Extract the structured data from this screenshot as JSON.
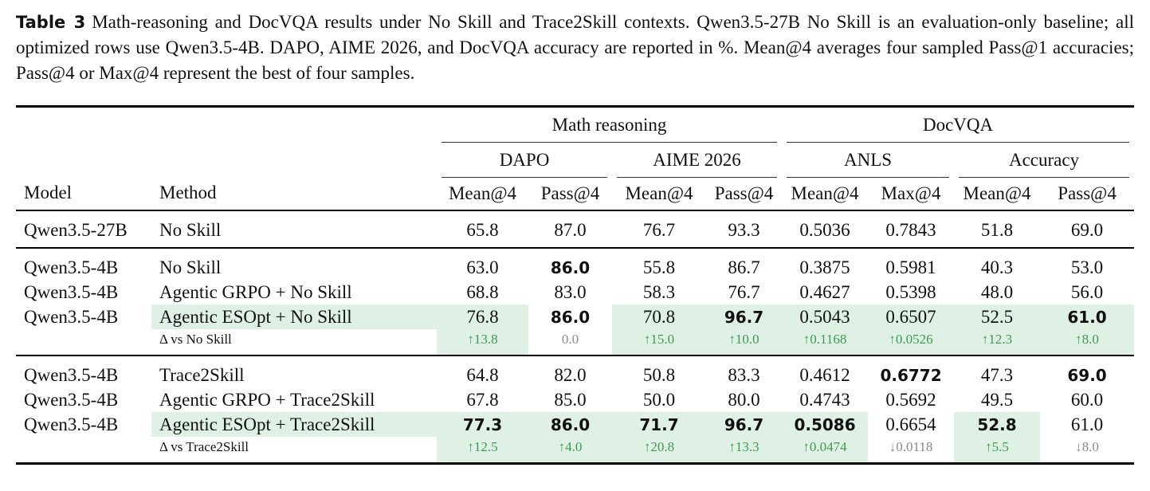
{
  "caption": {
    "label": "Table 3",
    "text": "Math-reasoning and DocVQA results under No Skill and Trace2Skill contexts. Qwen3.5-27B No Skill is an evaluation-only baseline; all optimized rows use Qwen3.5-4B. DAPO, AIME 2026, and DocVQA accuracy are reported in %. Mean@4 averages four sampled Pass@1 accuracies; Pass@4 or Max@4 represent the best of four samples."
  },
  "table": {
    "columns": [
      "Model",
      "Method"
    ],
    "groups": [
      {
        "name": "Math reasoning",
        "subgroups": [
          {
            "name": "DAPO",
            "metrics": [
              "Mean@4",
              "Pass@4"
            ]
          },
          {
            "name": "AIME 2026",
            "metrics": [
              "Mean@4",
              "Pass@4"
            ]
          }
        ]
      },
      {
        "name": "DocVQA",
        "subgroups": [
          {
            "name": "ANLS",
            "metrics": [
              "Mean@4",
              "Max@4"
            ]
          },
          {
            "name": "Accuracy",
            "metrics": [
              "Mean@4",
              "Pass@4"
            ]
          }
        ]
      }
    ],
    "sections": [
      [
        {
          "model": "Qwen3.5-27B",
          "method": "No Skill",
          "values": [
            "65.8",
            "87.0",
            "76.7",
            "93.3",
            "0.5036",
            "0.7843",
            "51.8",
            "69.0"
          ]
        }
      ],
      [
        {
          "model": "Qwen3.5-4B",
          "method": "No Skill",
          "values": [
            "63.0",
            "86.0",
            "55.8",
            "86.7",
            "0.3875",
            "0.5981",
            "40.3",
            "53.0"
          ],
          "bold": [
            1
          ]
        },
        {
          "model": "Qwen3.5-4B",
          "method": "Agentic GRPO + No Skill",
          "values": [
            "68.8",
            "83.0",
            "58.3",
            "76.7",
            "0.4627",
            "0.5398",
            "48.0",
            "56.0"
          ]
        },
        {
          "model": "Qwen3.5-4B",
          "method": "Agentic ESOpt + No Skill",
          "values": [
            "76.8",
            "86.0",
            "70.8",
            "96.7",
            "0.5043",
            "0.6507",
            "52.5",
            "61.0"
          ],
          "bold": [
            1,
            3,
            7
          ],
          "highlight_method": true,
          "highlight": [
            0,
            2,
            3,
            4,
            5,
            6,
            7
          ]
        },
        {
          "label": "Δ vs No Skill",
          "values": [
            "↑13.8",
            "0.0",
            "↑15.0",
            "↑10.0",
            "↑0.1168",
            "↑0.0526",
            "↑12.3",
            "↑8.0"
          ],
          "highlight": [
            0,
            2,
            3,
            4,
            5,
            6,
            7
          ]
        }
      ],
      [
        {
          "model": "Qwen3.5-4B",
          "method": "Trace2Skill",
          "values": [
            "64.8",
            "82.0",
            "50.8",
            "83.3",
            "0.4612",
            "0.6772",
            "47.3",
            "69.0"
          ],
          "bold": [
            5,
            7
          ]
        },
        {
          "model": "Qwen3.5-4B",
          "method": "Agentic GRPO + Trace2Skill",
          "values": [
            "67.8",
            "85.0",
            "50.0",
            "80.0",
            "0.4743",
            "0.5692",
            "49.5",
            "60.0"
          ]
        },
        {
          "model": "Qwen3.5-4B",
          "method": "Agentic ESOpt + Trace2Skill",
          "values": [
            "77.3",
            "86.0",
            "71.7",
            "96.7",
            "0.5086",
            "0.6654",
            "52.8",
            "61.0"
          ],
          "bold": [
            0,
            1,
            2,
            3,
            4,
            6
          ],
          "highlight_method": true,
          "highlight": [
            0,
            1,
            2,
            3,
            4,
            6
          ]
        },
        {
          "label": "Δ vs Trace2Skill",
          "values": [
            "↑12.5",
            "↑4.0",
            "↑20.8",
            "↑13.3",
            "↑0.0474",
            "↓0.0118",
            "↑5.5",
            "↓8.0"
          ],
          "highlight": [
            0,
            1,
            2,
            3,
            4,
            6
          ]
        }
      ]
    ]
  }
}
